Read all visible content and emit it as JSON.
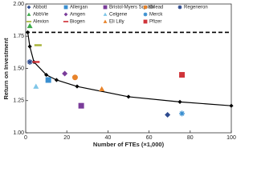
{
  "chart_data": {
    "type": "scatter",
    "x_label": "Number of FTEs (×1,000)",
    "y_label": "Return on Investment",
    "xlim": [
      0,
      100
    ],
    "ylim": [
      1,
      2
    ],
    "xticks": [
      0,
      20,
      40,
      60,
      80,
      100
    ],
    "yticks": [
      {
        "value": 1,
        "label": "1.00"
      },
      {
        "value": 1.25,
        "label": "1.25"
      },
      {
        "value": 1.5,
        "label": "1.50"
      },
      {
        "value": 1.75,
        "label": "1.75"
      },
      {
        "value": 2,
        "label": "2.00"
      }
    ],
    "reference_line": 1.78,
    "frontier": {
      "x": [
        1,
        2,
        4,
        10,
        15,
        25,
        50,
        75,
        100
      ],
      "y": [
        1.78,
        1.67,
        1.55,
        1.45,
        1.41,
        1.36,
        1.28,
        1.24,
        1.21
      ]
    },
    "series": [
      {
        "name": "Abbott",
        "color": "#2e4b8f",
        "marker": "diamond",
        "x": 69,
        "y": 1.14
      },
      {
        "name": "AbbVie",
        "color": "#3daa4a",
        "marker": "triangle",
        "x": 2,
        "y": 1.83
      },
      {
        "name": "Alexion",
        "color": "#a8b43a",
        "marker": "dash",
        "x": 6,
        "y": 1.68
      },
      {
        "name": "Allergan",
        "color": "#3a8fd0",
        "marker": "square",
        "x": 11,
        "y": 1.41
      },
      {
        "name": "Amgen",
        "color": "#7a3c9a",
        "marker": "diamond",
        "x": 19,
        "y": 1.46
      },
      {
        "name": "Biogen",
        "color": "#d0343a",
        "marker": "dash",
        "x": 5,
        "y": 1.55
      },
      {
        "name": "Bristol-Myers Squibb",
        "color": "#7a3c9a",
        "marker": "square",
        "x": 27,
        "y": 1.21
      },
      {
        "name": "Celgene",
        "color": "#7fc6e8",
        "marker": "triangle",
        "x": 5,
        "y": 1.36
      },
      {
        "name": "Eli Lilly",
        "color": "#e8832a",
        "marker": "triangle",
        "x": 37,
        "y": 1.34
      },
      {
        "name": "Gilead",
        "color": "#e8832a",
        "marker": "circle",
        "x": 24,
        "y": 1.43
      },
      {
        "name": "Merck",
        "color": "#3a8fd0",
        "marker": "star",
        "x": 76,
        "y": 1.15
      },
      {
        "name": "Pfizer",
        "color": "#d0343a",
        "marker": "square",
        "x": 76,
        "y": 1.45
      },
      {
        "name": "Regeneron",
        "color": "#2e4b8f",
        "marker": "star",
        "x": 2,
        "y": 1.55
      }
    ]
  }
}
